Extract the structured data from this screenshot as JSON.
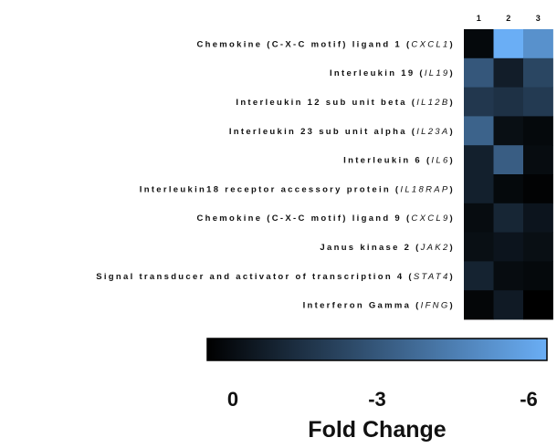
{
  "chart_data": {
    "type": "heatmap",
    "columns": [
      "1",
      "2",
      "3"
    ],
    "rows": [
      {
        "label": "Chemokine (C-X-C motif) ligand 1",
        "gene": "CXCL1"
      },
      {
        "label": "Interleukin 19",
        "gene": "IL19"
      },
      {
        "label": "Interleukin 12 sub unit beta",
        "gene": "IL12B"
      },
      {
        "label": "Interleukin 23 sub unit alpha",
        "gene": "IL23A"
      },
      {
        "label": "Interleukin 6",
        "gene": "IL6"
      },
      {
        "label": "Interleukin18 receptor accessory protein",
        "gene": "IL18RAP"
      },
      {
        "label": "Chemokine (C-X-C motif) ligand 9",
        "gene": "CXCL9"
      },
      {
        "label": "Janus kinase 2",
        "gene": "JAK2"
      },
      {
        "label": "Signal transducer and activator of transcription 4",
        "gene": "STAT4"
      },
      {
        "label": "Interferon Gamma",
        "gene": "IFNG"
      }
    ],
    "values": [
      [
        -0.3,
        -6.0,
        -5.0
      ],
      [
        -3.0,
        -1.0,
        -2.4
      ],
      [
        -1.9,
        -1.7,
        -2.0
      ],
      [
        -3.4,
        -0.5,
        -0.3
      ],
      [
        -1.1,
        -3.2,
        -0.4
      ],
      [
        -1.1,
        -0.3,
        -0.1
      ],
      [
        -0.4,
        -1.3,
        -0.7
      ],
      [
        -0.5,
        -0.7,
        -0.5
      ],
      [
        -1.2,
        -0.4,
        -0.3
      ],
      [
        -0.2,
        -0.9,
        0.0
      ]
    ],
    "colorbar": {
      "min_color": "#000000",
      "max_color": "#6aaef5",
      "range": [
        0,
        -6
      ],
      "ticks": [
        "0",
        "-3",
        "-6"
      ],
      "label": "Fold Change"
    }
  }
}
